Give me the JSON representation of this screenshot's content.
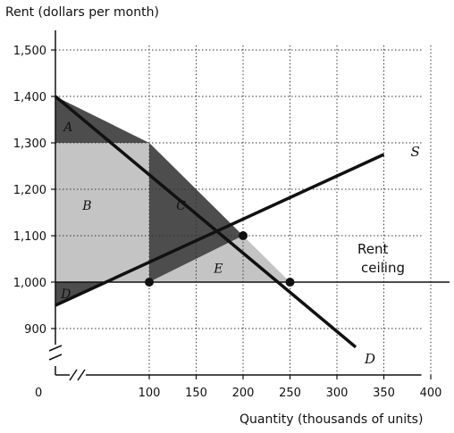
{
  "chart_data": {
    "type": "line",
    "title": "",
    "ylabel": "Rent (dollars per month)",
    "xlabel": "Quantity (thousands of units)",
    "origin_label": "0",
    "x_ticks": [
      100,
      150,
      200,
      250,
      300,
      350,
      400
    ],
    "y_ticks": [
      900,
      1000,
      1100,
      1200,
      1300,
      1400,
      1500
    ],
    "y_tick_labels": [
      "900",
      "1,000",
      "1,100",
      "1,200",
      "1,300",
      "1,400",
      "1,500"
    ],
    "x_tick_labels": [
      "100",
      "150",
      "200",
      "250",
      "300",
      "350",
      "400"
    ],
    "xlim": [
      0,
      420
    ],
    "ylim": [
      830,
      1560
    ],
    "axis_break": true,
    "grid": "dotted",
    "series": [
      {
        "name": "S",
        "points": [
          [
            0,
            950
          ],
          [
            350,
            1275
          ]
        ]
      },
      {
        "name": "D",
        "points": [
          [
            0,
            1400
          ],
          [
            320,
            860
          ]
        ]
      }
    ],
    "rent_ceiling": {
      "label_line1": "Rent",
      "label_line2": "ceiling",
      "value": 1000,
      "x_range": [
        0,
        420
      ]
    },
    "equilibrium_points": [
      [
        200,
        1100
      ],
      [
        100,
        1000
      ],
      [
        250,
        1000
      ]
    ],
    "regions": [
      {
        "label": "A",
        "polygon": [
          [
            0,
            1400
          ],
          [
            100,
            1300
          ],
          [
            0,
            1300
          ]
        ],
        "color": "#4d4d4d",
        "label_at": [
          5,
          1335
        ]
      },
      {
        "label": "B",
        "polygon": [
          [
            0,
            1300
          ],
          [
            100,
            1300
          ],
          [
            100,
            1000
          ],
          [
            0,
            1000
          ]
        ],
        "color": "#c4c4c4",
        "label_at": [
          25,
          1165
        ]
      },
      {
        "label": "C",
        "polygon": [
          [
            100,
            1300
          ],
          [
            200,
            1100
          ],
          [
            100,
            1000
          ]
        ],
        "color": "#4d4d4d",
        "label_at": [
          125,
          1165
        ]
      },
      {
        "label": "D",
        "polygon": [
          [
            0,
            950
          ],
          [
            0,
            1000
          ],
          [
            53,
            1000
          ]
        ],
        "color": "#4d4d4d",
        "label_at": [
          2,
          975
        ]
      },
      {
        "label": "E",
        "polygon": [
          [
            100,
            1000
          ],
          [
            200,
            1100
          ],
          [
            250,
            1000
          ]
        ],
        "color": "#c4c4c4",
        "label_at": [
          165,
          1030
        ]
      }
    ],
    "colors": {
      "curve": "#111111",
      "grid": "#333333",
      "dark": "#4d4d4d",
      "light": "#c4c4c4"
    }
  }
}
